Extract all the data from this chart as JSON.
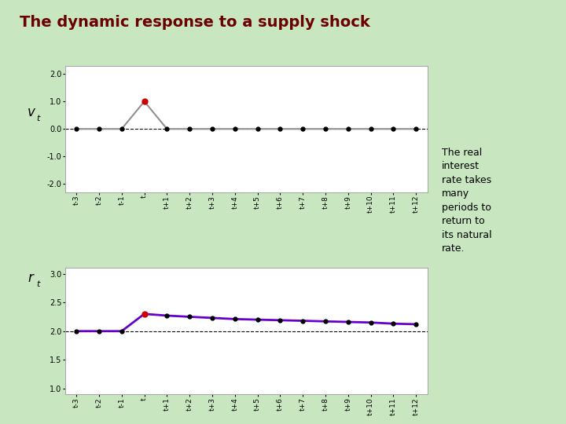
{
  "title": "The dynamic response to a supply shock",
  "title_color": "#6B0000",
  "title_fontsize": 14,
  "background_color": "#C8E6C0",
  "plot_bg_color": "#FFFFFF",
  "x_labels": [
    "t-3",
    "t-2",
    "t-1",
    "t",
    "t+1",
    "t+2",
    "t+3",
    "t+4",
    "t+5",
    "t+6",
    "t+7",
    "t+8",
    "t+9",
    "t+10",
    "t+11",
    "t+12"
  ],
  "x_indices": [
    -3,
    -2,
    -1,
    0,
    1,
    2,
    3,
    4,
    5,
    6,
    7,
    8,
    9,
    10,
    11,
    12
  ],
  "vt_values": [
    0.0,
    0.0,
    0.0,
    1.0,
    0.0,
    0.0,
    0.0,
    0.0,
    0.0,
    0.0,
    0.0,
    0.0,
    0.0,
    0.0,
    0.0,
    0.0
  ],
  "vt_ylim": [
    -2.3,
    2.3
  ],
  "vt_yticks": [
    -2.0,
    -1.0,
    0.0,
    1.0,
    2.0
  ],
  "vt_ylabel": "v",
  "vt_line_color": "#909090",
  "vt_dot_color": "#000000",
  "vt_special_dot_color": "#CC0000",
  "rt_values": [
    2.0,
    2.0,
    2.0,
    2.3,
    2.27,
    2.25,
    2.23,
    2.21,
    2.2,
    2.19,
    2.18,
    2.17,
    2.16,
    2.15,
    2.13,
    2.12
  ],
  "rt_natural_rate": 2.0,
  "rt_ylim": [
    0.9,
    3.1
  ],
  "rt_yticks": [
    1.0,
    1.5,
    2.0,
    2.5,
    3.0
  ],
  "rt_ylabel": "r",
  "rt_line_color": "#6600CC",
  "rt_dot_color": "#000000",
  "rt_special_dot_color": "#CC0000",
  "annotation_text": "The real\ninterest\nrate takes\nmany\nperiods to\nreturn to\nits natural\nrate.",
  "annotation_bg": "#F0B0B8",
  "annotation_fontsize": 9
}
